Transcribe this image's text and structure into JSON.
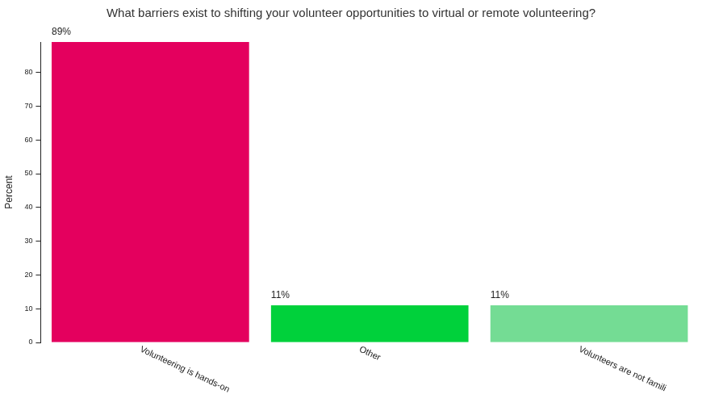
{
  "chart_data": {
    "type": "bar",
    "title": "What barriers exist to shifting your volunteer opportunities to virtual or remote volunteering?",
    "ylabel": "Percent",
    "categories": [
      "Volunteering is hands-on",
      "Other",
      "Volunteers are not famili"
    ],
    "values": [
      89,
      11,
      11
    ],
    "value_labels": [
      "89%",
      "11%",
      "11%"
    ],
    "colors": [
      "#e4005e",
      "#00d13b",
      "#74dc94"
    ],
    "ylim": [
      0,
      89
    ],
    "yticks": [
      0,
      10,
      20,
      30,
      40,
      50,
      60,
      70,
      80
    ],
    "grid": false,
    "data_labels": true
  }
}
